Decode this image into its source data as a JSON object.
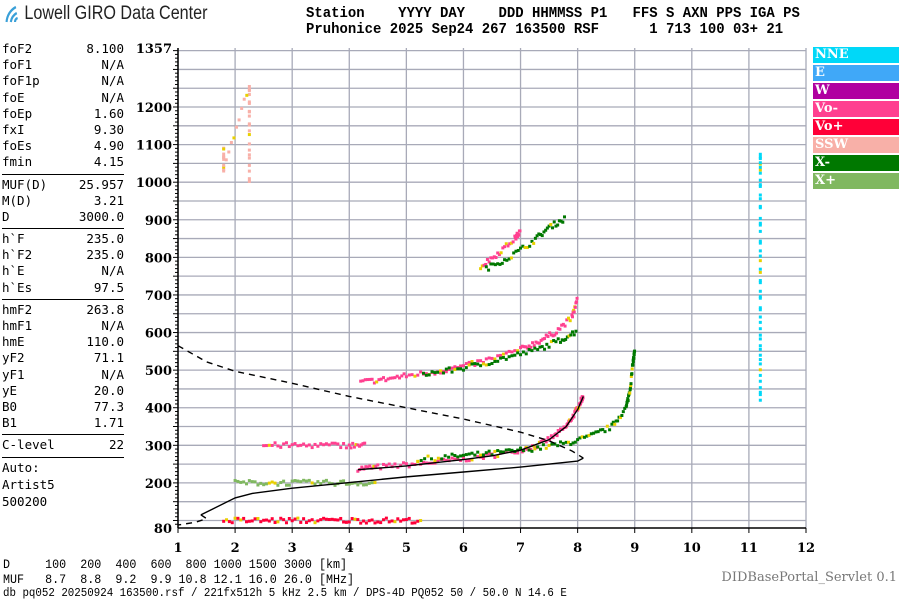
{
  "header": {
    "logo_text": "Lowell GIRO Data Center",
    "columns_line": "Station    YYYY DAY    DDD HHMMSS P1   FFS S AXN PPS IGA PS",
    "values_line": "Pruhonice 2025 Sep24 267 163500 RSF      1 713 100 03+ 21"
  },
  "params": {
    "group1": [
      [
        "foF2",
        "8.100"
      ],
      [
        "foF1",
        "N/A"
      ],
      [
        "foF1p",
        "N/A"
      ],
      [
        "foE",
        "N/A"
      ],
      [
        "foEp",
        "1.60"
      ],
      [
        "fxI",
        "9.30"
      ],
      [
        "foEs",
        "4.90"
      ],
      [
        "fmin",
        "4.15"
      ]
    ],
    "group2": [
      [
        "MUF(D)",
        "25.957"
      ],
      [
        "M(D)",
        "3.21"
      ],
      [
        "D",
        "3000.0"
      ]
    ],
    "group3": [
      [
        "h`F",
        "235.0"
      ],
      [
        "h`F2",
        "235.0"
      ],
      [
        "h`E",
        "N/A"
      ],
      [
        "h`Es",
        "97.5"
      ]
    ],
    "group4": [
      [
        "hmF2",
        "263.8"
      ],
      [
        "hmF1",
        "N/A"
      ],
      [
        "hmE",
        "110.0"
      ],
      [
        "yF2",
        "71.1"
      ],
      [
        "yF1",
        "N/A"
      ],
      [
        "yE",
        "20.0"
      ],
      [
        "B0",
        "77.3"
      ],
      [
        "B1",
        "1.71"
      ]
    ],
    "group5": [
      [
        "C-level",
        "22"
      ]
    ],
    "auto": [
      "Auto:",
      "Artist5",
      "500200"
    ]
  },
  "legend": [
    {
      "label": "NNE",
      "color": "#00d8f8"
    },
    {
      "label": "E",
      "color": "#40a8f8"
    },
    {
      "label": "W",
      "color": "#b000a0"
    },
    {
      "label": "Vo-",
      "color": "#ff4090"
    },
    {
      "label": "Vo+",
      "color": "#ff0038"
    },
    {
      "label": "SSW",
      "color": "#f8b0a8"
    },
    {
      "label": "X-",
      "color": "#007800"
    },
    {
      "label": "X+",
      "color": "#80b860"
    }
  ],
  "table": {
    "d_line": "D     100  200  400  600  800 1000 1500 3000 [km]",
    "muf_line": "MUF   8.7  8.8  9.2  9.9 10.8 12.1 16.0 26.0 [MHz]"
  },
  "servlet": "DIDBasePortal_Servlet 0.1",
  "footer": "db pq052 20250924 163500.rsf / 221fx512h 5 kHz 2.5 km / DPS-4D PQ052 50 / 50.0 N 14.6 E",
  "chart_data": {
    "type": "scatter",
    "xlim": [
      1,
      12
    ],
    "ylim": [
      80,
      1357
    ],
    "x_ticks": [
      1,
      2,
      3,
      4,
      5,
      6,
      7,
      8,
      9,
      10,
      11,
      12
    ],
    "y_ticks": [
      80,
      200,
      300,
      400,
      500,
      600,
      700,
      800,
      900,
      1000,
      1100,
      1200,
      1357
    ],
    "xlabel": "",
    "ylabel": "",
    "grid": true,
    "legend_position": "right",
    "traces": [
      {
        "name": "Vo-",
        "color": "#ff4090",
        "points": [
          [
            4.15,
            238
          ],
          [
            4.5,
            242
          ],
          [
            5,
            248
          ],
          [
            5.5,
            255
          ],
          [
            6,
            263
          ],
          [
            6.5,
            273
          ],
          [
            7,
            288
          ],
          [
            7.3,
            300
          ],
          [
            7.6,
            325
          ],
          [
            7.8,
            350
          ],
          [
            7.95,
            385
          ],
          [
            8.05,
            415
          ],
          [
            8.1,
            432
          ]
        ]
      },
      {
        "name": "X-",
        "color": "#007800",
        "points": [
          [
            5.2,
            262
          ],
          [
            5.8,
            270
          ],
          [
            6.3,
            276
          ],
          [
            6.8,
            283
          ],
          [
            7.3,
            293
          ],
          [
            7.8,
            305
          ],
          [
            8.2,
            322
          ],
          [
            8.6,
            350
          ],
          [
            8.85,
            400
          ],
          [
            8.92,
            450
          ],
          [
            8.97,
            520
          ],
          [
            9.0,
            550
          ]
        ]
      },
      {
        "name": "Vo-",
        "color": "#ff4090",
        "points": [
          [
            4.2,
            468
          ],
          [
            4.6,
            475
          ],
          [
            5,
            485
          ],
          [
            5.5,
            495
          ],
          [
            6,
            510
          ],
          [
            6.5,
            530
          ],
          [
            7,
            555
          ],
          [
            7.3,
            575
          ],
          [
            7.6,
            600
          ],
          [
            7.9,
            640
          ],
          [
            8.0,
            690
          ]
        ]
      },
      {
        "name": "X-",
        "color": "#007800",
        "points": [
          [
            5.3,
            490
          ],
          [
            5.8,
            500
          ],
          [
            6.3,
            515
          ],
          [
            6.8,
            535
          ],
          [
            7.3,
            555
          ],
          [
            7.7,
            580
          ],
          [
            8.0,
            605
          ]
        ]
      },
      {
        "name": "Vo-",
        "color": "#ff4090",
        "points": [
          [
            6.3,
            775
          ],
          [
            6.6,
            810
          ],
          [
            6.9,
            850
          ],
          [
            7.0,
            870
          ]
        ]
      },
      {
        "name": "X-",
        "color": "#007800",
        "points": [
          [
            6.4,
            770
          ],
          [
            6.8,
            800
          ],
          [
            7.2,
            840
          ],
          [
            7.5,
            880
          ],
          [
            7.8,
            905
          ]
        ]
      },
      {
        "name": "Vo+",
        "color": "#ff0038",
        "points": [
          [
            1.8,
            100
          ],
          [
            2.3,
            100
          ],
          [
            2.8,
            100
          ],
          [
            3.3,
            100
          ],
          [
            3.8,
            100
          ],
          [
            4.3,
            100
          ],
          [
            4.8,
            100
          ],
          [
            5.3,
            100
          ]
        ]
      },
      {
        "name": "X+",
        "color": "#80b860",
        "points": [
          [
            2.0,
            200
          ],
          [
            2.5,
            200
          ],
          [
            3.0,
            200
          ],
          [
            3.5,
            200
          ],
          [
            4.0,
            200
          ],
          [
            4.5,
            200
          ]
        ]
      },
      {
        "name": "Vo-",
        "color": "#ff4090",
        "points": [
          [
            2.5,
            300
          ],
          [
            3.0,
            300
          ],
          [
            3.5,
            300
          ],
          [
            4.0,
            300
          ],
          [
            4.3,
            300
          ]
        ]
      },
      {
        "name": "NNE",
        "color": "#00d8f8",
        "points": [
          [
            11.2,
            420
          ],
          [
            11.2,
            550
          ],
          [
            11.2,
            700
          ],
          [
            11.2,
            850
          ],
          [
            11.2,
            1000
          ],
          [
            11.2,
            1090
          ]
        ]
      },
      {
        "name": "SSW",
        "color": "#f8b0a8",
        "points": [
          [
            2.25,
            1000
          ],
          [
            2.25,
            1150
          ],
          [
            2.25,
            1260
          ],
          [
            1.8,
            1030
          ],
          [
            1.8,
            1100
          ]
        ]
      }
    ],
    "profile_topside": [
      [
        1,
        565
      ],
      [
        1.5,
        522
      ],
      [
        2,
        497
      ],
      [
        3,
        465
      ],
      [
        4,
        430
      ],
      [
        5,
        400
      ],
      [
        6,
        370
      ],
      [
        7,
        335
      ],
      [
        7.5,
        312
      ],
      [
        7.9,
        285
      ],
      [
        8.1,
        266
      ]
    ],
    "profile_bottomside": [
      [
        8.1,
        266
      ],
      [
        8.0,
        258
      ],
      [
        7,
        242
      ],
      [
        6,
        229
      ],
      [
        5,
        216
      ],
      [
        4,
        201
      ],
      [
        3,
        186
      ],
      [
        2.3,
        172
      ],
      [
        2,
        160
      ],
      [
        1.6,
        130
      ],
      [
        1.4,
        115
      ]
    ],
    "profile_lower": [
      [
        1.4,
        115
      ],
      [
        1.5,
        105
      ],
      [
        1.3,
        95
      ],
      [
        1.0,
        88
      ]
    ],
    "fitted_trace": [
      [
        4.15,
        235
      ],
      [
        5,
        245
      ],
      [
        6,
        262
      ],
      [
        6.5,
        272
      ],
      [
        7,
        287
      ],
      [
        7.5,
        315
      ],
      [
        7.8,
        350
      ],
      [
        8.0,
        395
      ],
      [
        8.1,
        430
      ]
    ]
  }
}
